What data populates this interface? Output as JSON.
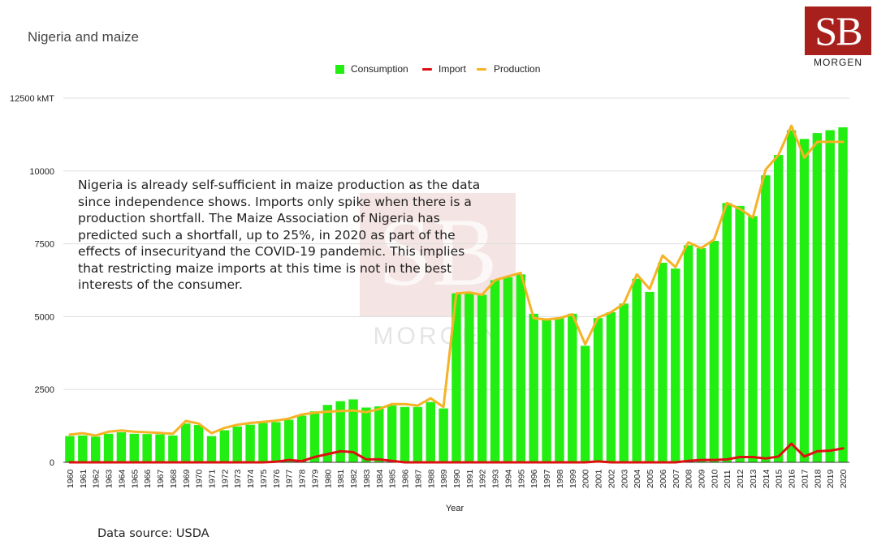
{
  "title": "Nigeria and maize",
  "logo": {
    "initials": "SB",
    "word": "MORGEN"
  },
  "annotation": "Nigeria is already self-sufficient in maize production as the data since independence shows. Imports only spike when there is a production shortfall. The Maize Association of Nigeria has predicted such a shortfall, up to 25%, in 2020 as part of the effects of insecurityand the COVID-19 pandemic. This implies that restricting maize imports at this time is not in the best interests of the consumer.",
  "source": "Data source: USDA",
  "colors": {
    "consumption": "#22ee11",
    "import": "#dd1111",
    "production": "#f5b325",
    "grid": "#dddddd",
    "axis": "#333333"
  },
  "chart_data": {
    "type": "bar",
    "title": "Nigeria and maize",
    "xlabel": "Year",
    "ylabel": "",
    "ylim": [
      0,
      12500
    ],
    "yticks": [
      "0",
      "2500",
      "5000",
      "7500",
      "10000",
      "12500 kMT"
    ],
    "legend_position": "top-center",
    "grid": true,
    "categories": [
      "1960",
      "1961",
      "1962",
      "1963",
      "1964",
      "1965",
      "1966",
      "1967",
      "1968",
      "1969",
      "1970",
      "1971",
      "1972",
      "1973",
      "1974",
      "1975",
      "1976",
      "1977",
      "1978",
      "1979",
      "1980",
      "1981",
      "1982",
      "1983",
      "1984",
      "1985",
      "1986",
      "1987",
      "1988",
      "1989",
      "1990",
      "1991",
      "1992",
      "1993",
      "1994",
      "1995",
      "1996",
      "1997",
      "1998",
      "1999",
      "2000",
      "2001",
      "2002",
      "2003",
      "2004",
      "2005",
      "2006",
      "2007",
      "2008",
      "2009",
      "2010",
      "2011",
      "2012",
      "2013",
      "2014",
      "2015",
      "2016",
      "2017",
      "2018",
      "2019",
      "2020"
    ],
    "series": [
      {
        "name": "Consumption",
        "type": "bar",
        "values": [
          900,
          920,
          880,
          980,
          1030,
          980,
          970,
          960,
          920,
          1330,
          1280,
          900,
          1100,
          1230,
          1290,
          1350,
          1380,
          1460,
          1600,
          1750,
          1970,
          2100,
          2160,
          1880,
          1920,
          1950,
          1900,
          1900,
          2070,
          1850,
          5800,
          5800,
          5750,
          6250,
          6350,
          6450,
          5100,
          4900,
          4950,
          5100,
          4000,
          4950,
          5150,
          5450,
          6300,
          5850,
          6850,
          6650,
          7450,
          7350,
          7600,
          8900,
          8800,
          8450,
          9850,
          10550,
          11400,
          11100,
          11300,
          11400,
          11500
        ]
      },
      {
        "name": "Import",
        "type": "line",
        "values": [
          0,
          0,
          0,
          0,
          0,
          0,
          0,
          0,
          0,
          0,
          0,
          0,
          0,
          0,
          0,
          0,
          20,
          80,
          40,
          180,
          280,
          380,
          350,
          100,
          100,
          50,
          0,
          0,
          0,
          0,
          0,
          0,
          0,
          0,
          0,
          0,
          0,
          0,
          0,
          0,
          0,
          30,
          0,
          0,
          0,
          0,
          0,
          0,
          50,
          80,
          80,
          100,
          180,
          180,
          130,
          200,
          640,
          200,
          380,
          400,
          480
        ]
      },
      {
        "name": "Production",
        "type": "line",
        "values": [
          950,
          1000,
          920,
          1050,
          1090,
          1050,
          1030,
          1010,
          980,
          1420,
          1330,
          1000,
          1180,
          1290,
          1350,
          1390,
          1430,
          1500,
          1640,
          1700,
          1740,
          1760,
          1780,
          1720,
          1830,
          2000,
          2000,
          1950,
          2200,
          1900,
          5800,
          5830,
          5750,
          6250,
          6380,
          6500,
          4950,
          4900,
          4950,
          5080,
          4050,
          4970,
          5150,
          5450,
          6450,
          5950,
          7100,
          6700,
          7550,
          7350,
          7650,
          8900,
          8700,
          8400,
          10050,
          10550,
          11550,
          10450,
          11000,
          11000,
          11000
        ]
      }
    ]
  }
}
